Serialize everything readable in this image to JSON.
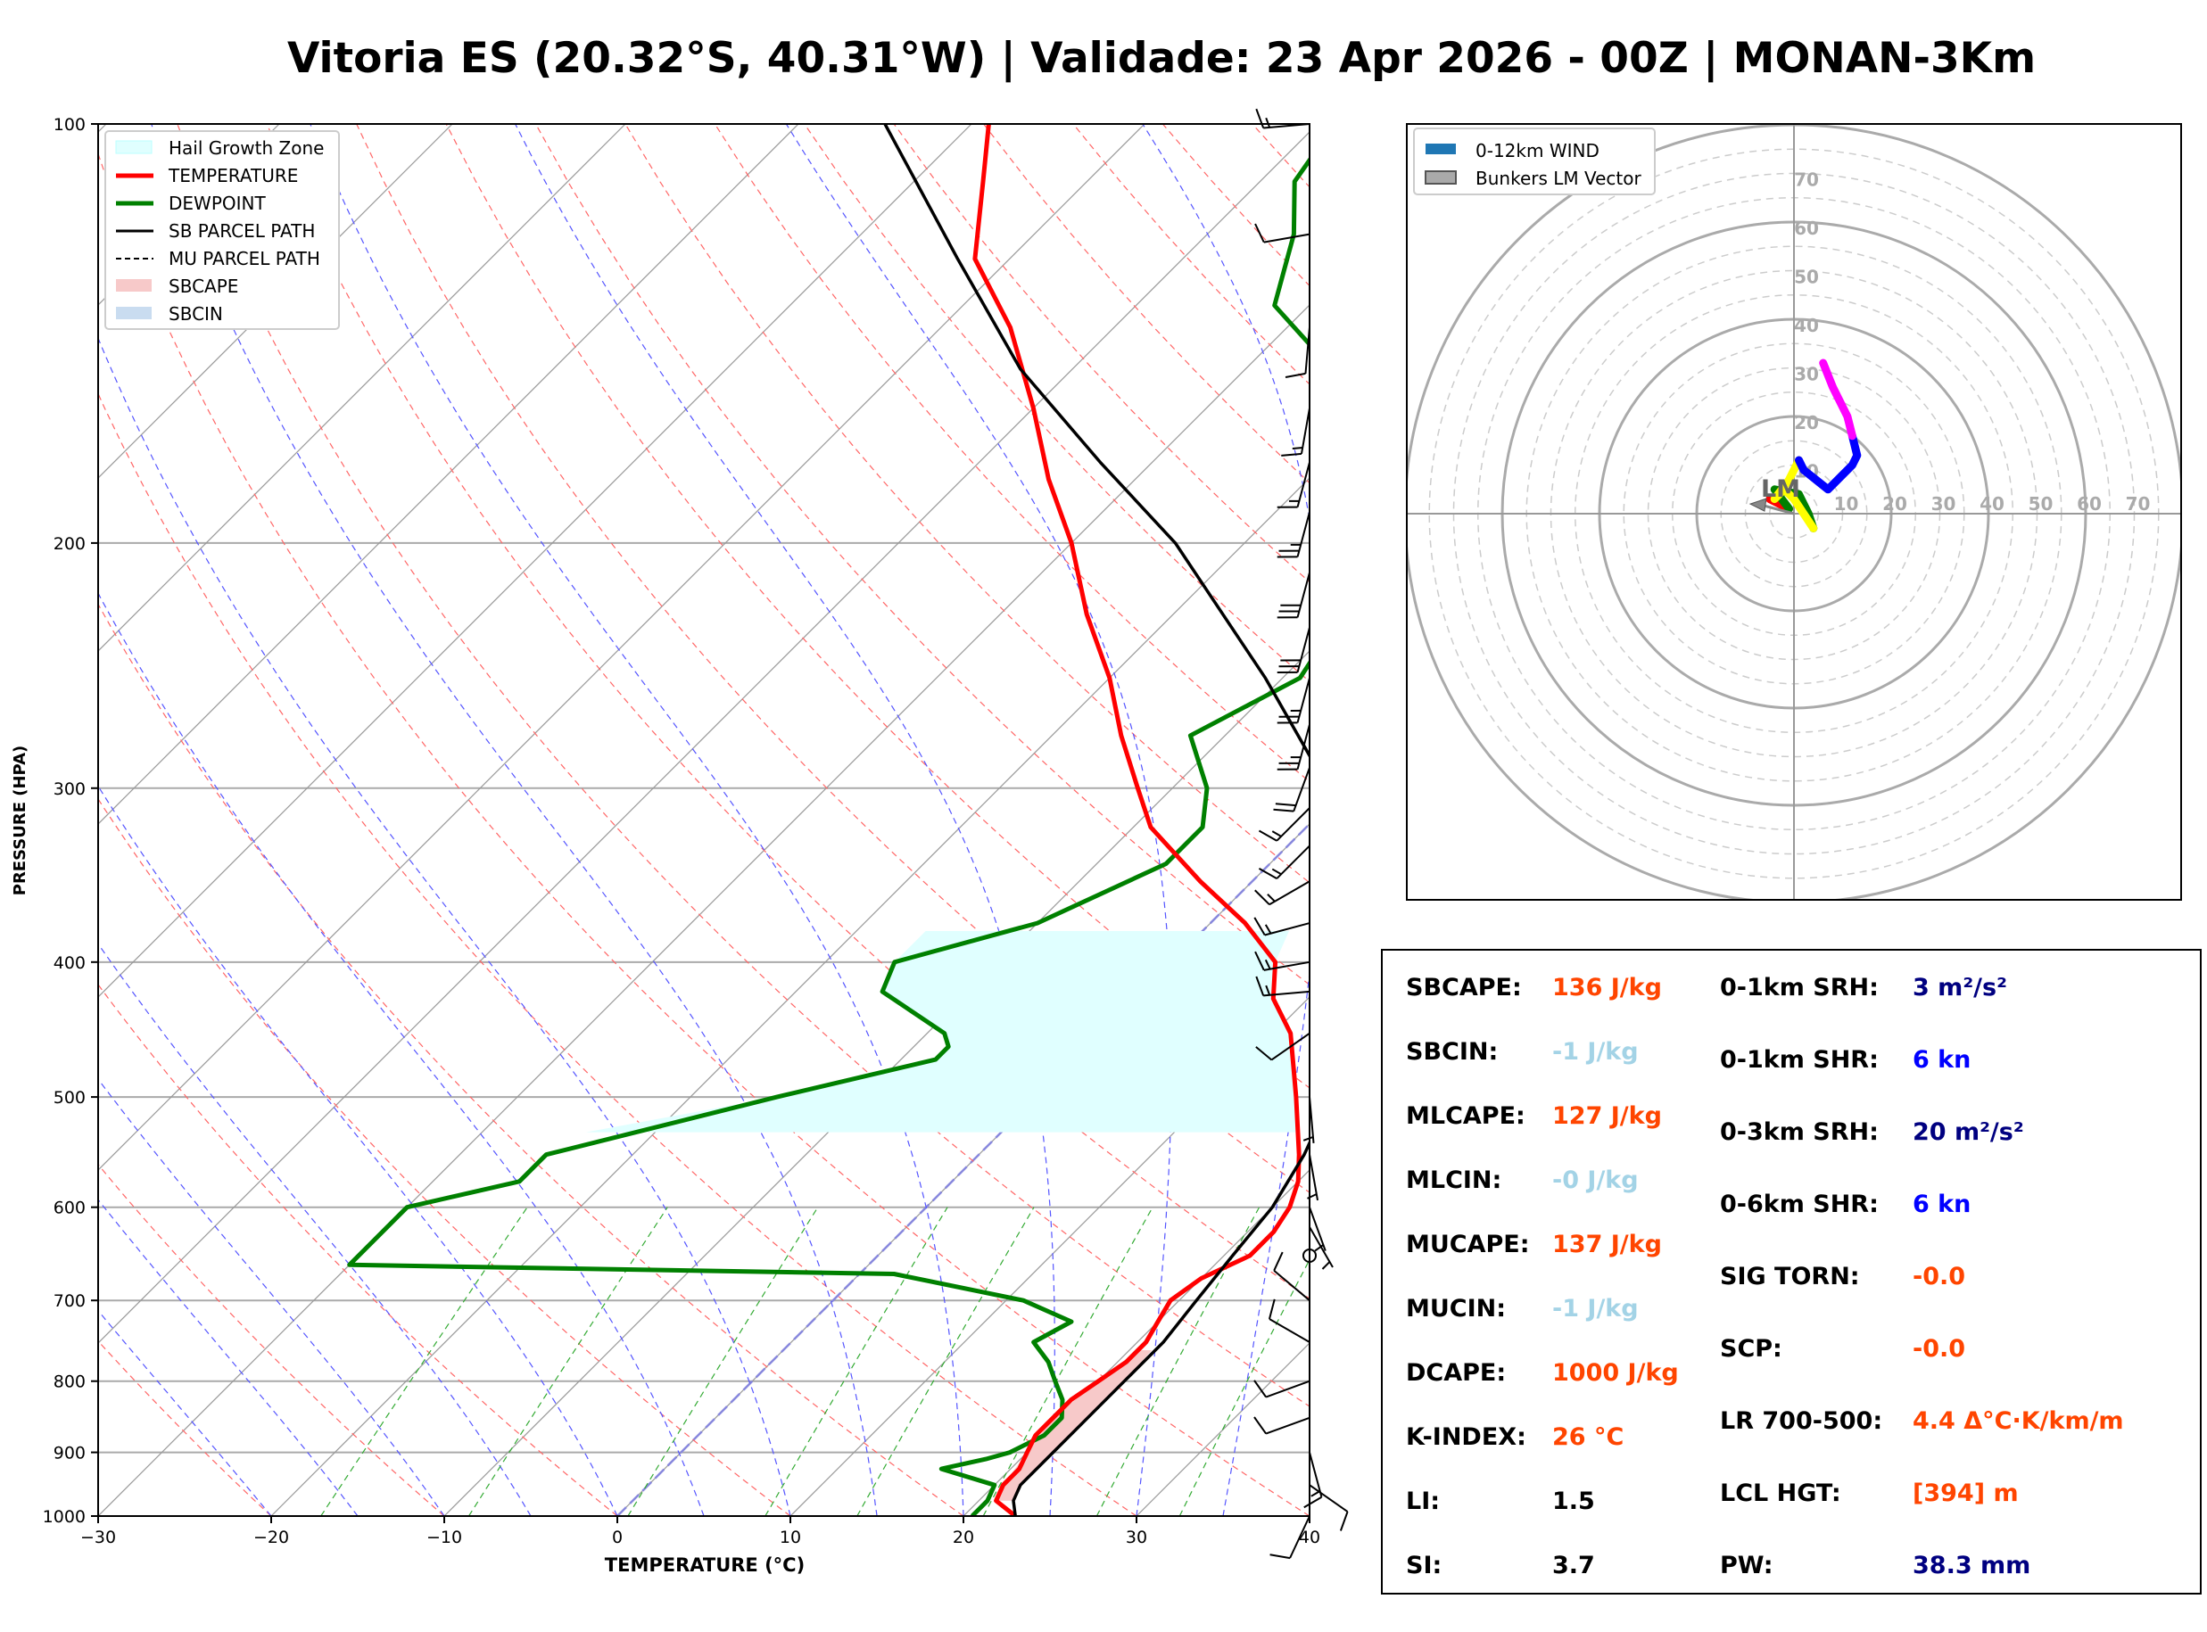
{
  "title": "Vitoria ES (20.32°S, 40.31°W) | Validade: 23 Apr 2026 - 00Z | MONAN-3Km",
  "colors": {
    "temperature": "#ff0000",
    "dewpoint": "#008000",
    "parcel": "#000000",
    "hail_zone": "#e0ffff",
    "sbcape": "#f7c9c9",
    "isotherm": "#888888",
    "dry_adiabat": "#ff6666",
    "moist_adiabat": "#5555ff",
    "mixing_ratio": "#33aa33",
    "hodo_0_1": "#ff0000",
    "hodo_1_3": "#008000",
    "hodo_3_6": "#ffff00",
    "hodo_6_9": "#0000ff",
    "hodo_9_12": "#ff00ff",
    "val_orange": "#ff4500",
    "val_lightblue": "#a3d3e6",
    "val_navy": "#000080",
    "val_blue": "#0000ff",
    "val_black": "#000000"
  },
  "chart_data": [
    {
      "type": "skewt",
      "xlabel": "TEMPERATURE (°C)",
      "ylabel": "PRESSURE (HPA)",
      "xlim": [
        -30,
        40
      ],
      "ylim": [
        1000,
        100
      ],
      "yscale": "log",
      "x_ticks": [
        "−30",
        "−20",
        "−10",
        "0",
        "10",
        "20",
        "30",
        "40"
      ],
      "y_ticks": [
        "1000",
        "900",
        "800",
        "700",
        "600",
        "500",
        "400",
        "300",
        "200",
        "100"
      ],
      "legend": {
        "position": "top-left",
        "entries": [
          "Hail Growth Zone",
          "TEMPERATURE",
          "DEWPOINT",
          "SB PARCEL PATH",
          "MU PARCEL PATH",
          "SBCAPE",
          "SBCIN"
        ]
      },
      "series": {
        "temperature": [
          [
            1000,
            23
          ],
          [
            975,
            21
          ],
          [
            950,
            20.5
          ],
          [
            925,
            20.5
          ],
          [
            900,
            20
          ],
          [
            875,
            19.5
          ],
          [
            850,
            19.5
          ],
          [
            825,
            19.5
          ],
          [
            800,
            20
          ],
          [
            775,
            20.5
          ],
          [
            750,
            20.5
          ],
          [
            725,
            20
          ],
          [
            700,
            19.5
          ],
          [
            675,
            20
          ],
          [
            650,
            21.5
          ],
          [
            625,
            21.5
          ],
          [
            600,
            21
          ],
          [
            575,
            20
          ],
          [
            550,
            18.5
          ],
          [
            500,
            15
          ],
          [
            450,
            11
          ],
          [
            425,
            8
          ],
          [
            400,
            6
          ],
          [
            375,
            2
          ],
          [
            350,
            -3
          ],
          [
            320,
            -9
          ],
          [
            300,
            -12
          ],
          [
            275,
            -16
          ],
          [
            250,
            -20
          ],
          [
            225,
            -25
          ],
          [
            200,
            -30
          ],
          [
            180,
            -35
          ],
          [
            160,
            -40
          ],
          [
            140,
            -46
          ],
          [
            125,
            -52
          ],
          [
            110,
            -56
          ],
          [
            100,
            -59
          ]
        ],
        "dewpoint": [
          [
            1000,
            20.5
          ],
          [
            975,
            20.5
          ],
          [
            950,
            20
          ],
          [
            925,
            16
          ],
          [
            910,
            18
          ],
          [
            900,
            19
          ],
          [
            875,
            20
          ],
          [
            850,
            20
          ],
          [
            825,
            19
          ],
          [
            800,
            17.5
          ],
          [
            775,
            16
          ],
          [
            750,
            14
          ],
          [
            725,
            15
          ],
          [
            700,
            11
          ],
          [
            670,
            2
          ],
          [
            660,
            -30
          ],
          [
            600,
            -30
          ],
          [
            575,
            -25
          ],
          [
            550,
            -25
          ],
          [
            500,
            -15
          ],
          [
            470,
            -8
          ],
          [
            460,
            -8
          ],
          [
            450,
            -9
          ],
          [
            420,
            -15
          ],
          [
            400,
            -16
          ],
          [
            375,
            -10
          ],
          [
            340,
            -6
          ],
          [
            320,
            -6
          ],
          [
            300,
            -8
          ],
          [
            275,
            -12
          ],
          [
            250,
            -9
          ],
          [
            230,
            -10
          ],
          [
            200,
            -10
          ],
          [
            185,
            -12
          ],
          [
            165,
            -18
          ],
          [
            150,
            -25
          ],
          [
            135,
            -32
          ],
          [
            120,
            -35
          ],
          [
            110,
            -38
          ],
          [
            100,
            -39
          ]
        ],
        "sb_parcel": [
          [
            1000,
            23
          ],
          [
            975,
            22
          ],
          [
            950,
            21.5
          ],
          [
            900,
            21.5
          ],
          [
            850,
            21.5
          ],
          [
            800,
            21.5
          ],
          [
            750,
            21.5
          ],
          [
            700,
            21
          ],
          [
            650,
            20.5
          ],
          [
            600,
            20
          ],
          [
            550,
            18.8
          ],
          [
            500,
            17
          ],
          [
            450,
            14.5
          ],
          [
            400,
            11
          ],
          [
            375,
            8.5
          ],
          [
            350,
            5.5
          ],
          [
            300,
            -1
          ],
          [
            250,
            -11
          ],
          [
            200,
            -24
          ],
          [
            175,
            -33
          ],
          [
            150,
            -43
          ],
          [
            125,
            -53
          ],
          [
            100,
            -65
          ]
        ],
        "hail_zone": {
          "top_pressure": 380,
          "bottom_pressure": 530
        }
      }
    },
    {
      "type": "line",
      "name": "hodograph",
      "rings": [
        10,
        20,
        30,
        40,
        50,
        60,
        70
      ],
      "legend": {
        "position": "top-left",
        "entries": [
          "0-12km WIND",
          "Bunkers LM Vector"
        ]
      },
      "lm_label": "LM",
      "bunkers_lm": [
        -9,
        2
      ],
      "segments": [
        {
          "layer": "0-1km",
          "points": [
            [
              -5,
              3
            ],
            [
              -3,
              2
            ],
            [
              -1,
              1
            ]
          ]
        },
        {
          "layer": "1-3km",
          "points": [
            [
              -1,
              1
            ],
            [
              -4,
              5
            ],
            [
              1,
              4
            ],
            [
              3,
              0
            ],
            [
              4,
              -3
            ]
          ]
        },
        {
          "layer": "3-6km",
          "points": [
            [
              4,
              -3
            ],
            [
              0,
              3
            ],
            [
              -2,
              5
            ],
            [
              -4,
              3
            ],
            [
              -1,
              7
            ],
            [
              1,
              11
            ]
          ]
        },
        {
          "layer": "6-9km",
          "points": [
            [
              1,
              11
            ],
            [
              2,
              9
            ],
            [
              7,
              5
            ],
            [
              12,
              10
            ],
            [
              13,
              12
            ],
            [
              12,
              16
            ]
          ]
        },
        {
          "layer": "9-12km",
          "points": [
            [
              12,
              16
            ],
            [
              11,
              20
            ],
            [
              8,
              26
            ],
            [
              6,
              31
            ]
          ]
        }
      ]
    }
  ],
  "barbs": [
    {
      "p": 1000,
      "dir": 205,
      "spd": 10
    },
    {
      "p": 950,
      "dir": 125,
      "spd": 10
    },
    {
      "p": 900,
      "dir": 165,
      "spd": 15
    },
    {
      "p": 850,
      "dir": 250,
      "spd": 10
    },
    {
      "p": 800,
      "dir": 250,
      "spd": 10
    },
    {
      "p": 750,
      "dir": 300,
      "spd": 10
    },
    {
      "p": 700,
      "dir": 310,
      "spd": 10
    },
    {
      "p": 650,
      "dir": 0,
      "spd": 0
    },
    {
      "p": 620,
      "dir": 150,
      "spd": 5
    },
    {
      "p": 600,
      "dir": 160,
      "spd": 5
    },
    {
      "p": 550,
      "dir": 170,
      "spd": 5
    },
    {
      "p": 500,
      "dir": 175,
      "spd": 5
    },
    {
      "p": 450,
      "dir": 235,
      "spd": 10
    },
    {
      "p": 420,
      "dir": 265,
      "spd": 15
    },
    {
      "p": 400,
      "dir": 260,
      "spd": 15
    },
    {
      "p": 375,
      "dir": 255,
      "spd": 15
    },
    {
      "p": 350,
      "dir": 240,
      "spd": 15
    },
    {
      "p": 330,
      "dir": 225,
      "spd": 15
    },
    {
      "p": 310,
      "dir": 225,
      "spd": 15
    },
    {
      "p": 290,
      "dir": 200,
      "spd": 20
    },
    {
      "p": 270,
      "dir": 195,
      "spd": 25
    },
    {
      "p": 250,
      "dir": 195,
      "spd": 25
    },
    {
      "p": 230,
      "dir": 195,
      "spd": 30
    },
    {
      "p": 210,
      "dir": 195,
      "spd": 30
    },
    {
      "p": 190,
      "dir": 195,
      "spd": 25
    },
    {
      "p": 175,
      "dir": 195,
      "spd": 15
    },
    {
      "p": 160,
      "dir": 190,
      "spd": 15
    },
    {
      "p": 140,
      "dir": 185,
      "spd": 10
    },
    {
      "p": 120,
      "dir": 260,
      "spd": 10
    },
    {
      "p": 100,
      "dir": 265,
      "spd": 15
    }
  ],
  "stats": {
    "left": [
      {
        "label": "SBCAPE:",
        "value": "136 J/kg",
        "color": "#ff4500"
      },
      {
        "label": "SBCIN:",
        "value": "-1 J/kg",
        "color": "#a3d3e6"
      },
      {
        "label": "MLCAPE:",
        "value": "127 J/kg",
        "color": "#ff4500"
      },
      {
        "label": "MLCIN:",
        "value": "-0 J/kg",
        "color": "#a3d3e6"
      },
      {
        "label": "MUCAPE:",
        "value": "137 J/kg",
        "color": "#ff4500"
      },
      {
        "label": "MUCIN:",
        "value": "-1 J/kg",
        "color": "#a3d3e6"
      },
      {
        "label": "DCAPE:",
        "value": "1000 J/kg",
        "color": "#ff4500"
      },
      {
        "label": "K-INDEX:",
        "value": "26 °C",
        "color": "#ff4500"
      },
      {
        "label": "LI:",
        "value": "1.5",
        "color": "#000000"
      },
      {
        "label": "SI:",
        "value": "3.7",
        "color": "#000000"
      }
    ],
    "right": [
      {
        "label": "0-1km SRH:",
        "value": "3 m²/s²",
        "color": "#000080"
      },
      {
        "label": "0-1km SHR:",
        "value": "6 kn",
        "color": "#0000ff"
      },
      {
        "label": "0-3km SRH:",
        "value": "20 m²/s²",
        "color": "#000080"
      },
      {
        "label": "0-6km SHR:",
        "value": "6 kn",
        "color": "#0000ff"
      },
      {
        "label": "SIG TORN:",
        "value": "-0.0",
        "color": "#ff4500"
      },
      {
        "label": "SCP:",
        "value": "-0.0",
        "color": "#ff4500"
      },
      {
        "label": "LR 700-500:",
        "value": "4.4 Δ°C·K/km/m",
        "color": "#ff4500"
      },
      {
        "label": "LCL HGT:",
        "value": "[394] m",
        "color": "#ff4500"
      },
      {
        "label": "PW:",
        "value": "38.3 mm",
        "color": "#000080"
      }
    ]
  }
}
